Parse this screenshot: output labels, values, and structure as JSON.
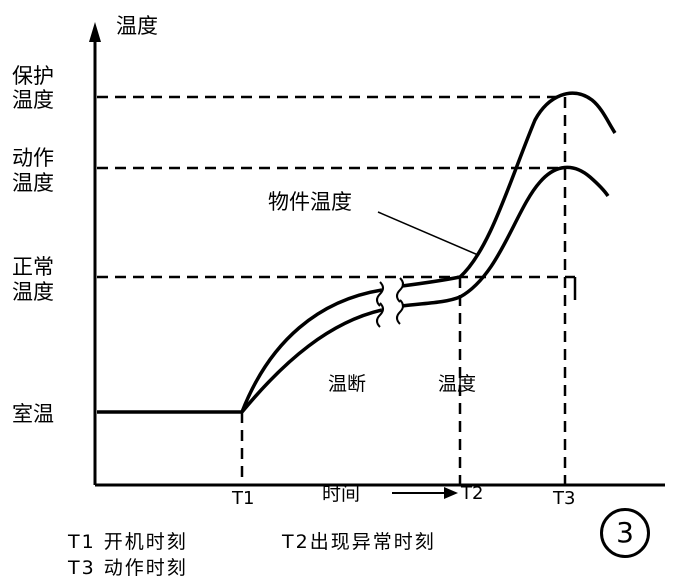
{
  "axis": {
    "y_title": "温度",
    "x_title": "时间",
    "x_ticks": [
      "T1",
      "T2",
      "T3"
    ]
  },
  "levels": {
    "protect": [
      "保护",
      "温度"
    ],
    "action": [
      "动作",
      "温度"
    ],
    "normal": [
      "正常",
      "温度"
    ],
    "room": "室温"
  },
  "annotations": {
    "object_temp": "物件温度",
    "gap_left": "温断",
    "gap_right": "温度"
  },
  "legend": {
    "line1_a": "T1 开机时刻",
    "line1_b": "T2出现异常时刻",
    "line2": "T3 动作时刻"
  },
  "figure_number": "3"
}
